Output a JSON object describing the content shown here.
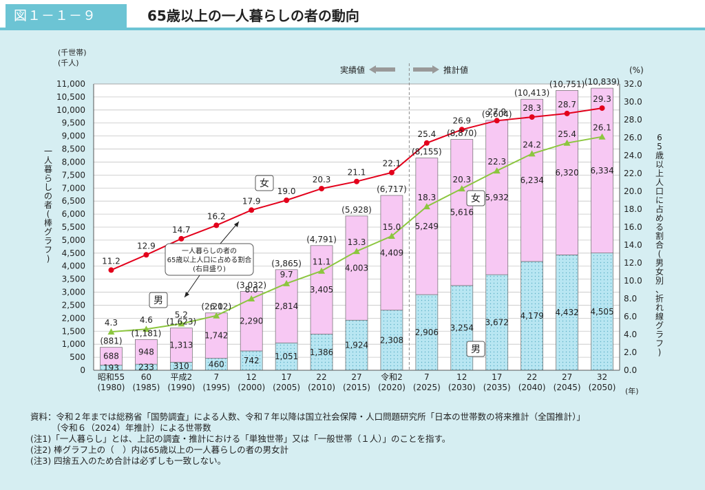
{
  "header": {
    "figure_number": "図１－１－９",
    "title": "65歳以上の一人暮らしの者の動向"
  },
  "colors": {
    "accent": "#6cc4d4",
    "background": "#d6eef2",
    "female_bar": "#f7c8f3",
    "male_bar": "#b8e6f2",
    "female_line": "#e3001b",
    "male_line": "#8cc63f",
    "arrow": "#999999"
  },
  "labels": {
    "left_unit_1": "(千世帯)",
    "left_unit_2": "(千人)",
    "right_unit": "(%)",
    "actual": "実績値",
    "projected": "推計値",
    "year_unit": "(年)",
    "left_axis_title": "一人暮らしの者(棒グラフ)",
    "right_axis_title": "65歳以上人口に占める割合(男女別、折れ線グラフ)",
    "female": "女",
    "male": "男",
    "callout_lines": [
      "一人暮らしの者の",
      "65歳以上人口に占める割合",
      "(右目盛り)"
    ]
  },
  "chart_data": {
    "type": "bar",
    "categories": [
      [
        "昭和55",
        "(1980)"
      ],
      [
        "60",
        "(1985)"
      ],
      [
        "平成2",
        "(1990)"
      ],
      [
        "7",
        "(1995)"
      ],
      [
        "12",
        "(2000)"
      ],
      [
        "17",
        "(2005)"
      ],
      [
        "22",
        "(2010)"
      ],
      [
        "27",
        "(2015)"
      ],
      [
        "令和2",
        "(2020)"
      ],
      [
        "7",
        "(2025)"
      ],
      [
        "12",
        "(2030)"
      ],
      [
        "17",
        "(2035)"
      ],
      [
        "22",
        "(2040)"
      ],
      [
        "27",
        "(2045)"
      ],
      [
        "32",
        "(2050)"
      ]
    ],
    "series": [
      {
        "name": "男",
        "kind": "bar",
        "values": [
          193,
          233,
          310,
          460,
          742,
          1051,
          1386,
          1924,
          2308,
          2906,
          3254,
          3672,
          4179,
          4432,
          4505
        ]
      },
      {
        "name": "女",
        "kind": "bar",
        "values": [
          688,
          948,
          1313,
          1742,
          2290,
          2814,
          3405,
          4003,
          4409,
          5249,
          5616,
          5932,
          6234,
          6320,
          6334
        ]
      }
    ],
    "totals": [
      "(881)",
      "(1,181)",
      "(1,623)",
      "(2,202)",
      "(3,032)",
      "(3,865)",
      "(4,791)",
      "(5,928)",
      "(6,717)",
      "(8,155)",
      "(8,870)",
      "(9,604)",
      "(10,413)",
      "(10,751)",
      "(10,839)"
    ],
    "ratios": [
      {
        "name": "女",
        "kind": "line",
        "values": [
          11.2,
          12.9,
          14.7,
          16.2,
          17.9,
          19.0,
          20.3,
          21.1,
          22.1,
          25.4,
          26.9,
          27.9,
          28.3,
          28.7,
          29.3
        ]
      },
      {
        "name": "男",
        "kind": "line",
        "values": [
          4.3,
          4.6,
          5.2,
          6.1,
          8.0,
          9.7,
          11.1,
          13.3,
          15.0,
          18.3,
          20.3,
          22.3,
          24.2,
          25.4,
          26.1
        ]
      }
    ],
    "ylim": [
      0,
      11000
    ],
    "ytick_step": 500,
    "y2lim": [
      0,
      32
    ],
    "y2tick_step": 2,
    "projection_starts_after_index": 8,
    "grid": true
  },
  "notes": [
    "資料：令和２年までは総務省「国勢調査」による人数、令和７年以降は国立社会保障・人口問題研究所「日本の世帯数の将来推計（全国推計）」",
    "　　　（令和６（2024）年推計）による世帯数",
    "(注1)「一人暮らし」とは、上記の調査・推計における「単独世帯」又は「一般世帯（１人）」のことを指す。",
    "(注2) 棒グラフ上の（　）内は65歳以上の一人暮らしの者の男女計",
    "(注3) 四捨五入のため合計は必ずしも一致しない。"
  ]
}
